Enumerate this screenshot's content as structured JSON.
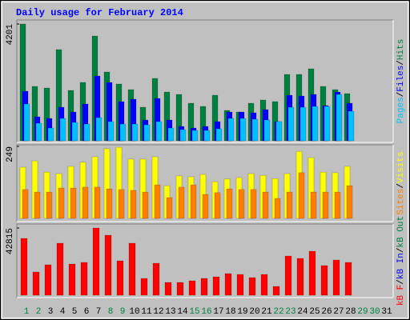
{
  "chart_data": {
    "type": "bar",
    "title": "Daily usage for February 2014",
    "categories": [
      "1",
      "2",
      "3",
      "4",
      "5",
      "6",
      "7",
      "8",
      "9",
      "10",
      "11",
      "12",
      "13",
      "14",
      "15",
      "16",
      "17",
      "18",
      "19",
      "20",
      "21",
      "22",
      "23",
      "24",
      "25",
      "26",
      "27",
      "28",
      "29",
      "30",
      "31"
    ],
    "category_colors": [
      "#008040",
      "#008040",
      "#000000",
      "#000000",
      "#000000",
      "#000000",
      "#000000",
      "#008040",
      "#008040",
      "#000000",
      "#000000",
      "#000000",
      "#000000",
      "#000000",
      "#008040",
      "#008040",
      "#000000",
      "#000000",
      "#000000",
      "#000000",
      "#000000",
      "#008040",
      "#008040",
      "#000000",
      "#000000",
      "#000000",
      "#000000",
      "#000000",
      "#008040",
      "#008040",
      "#000000"
    ],
    "legend_separator": "/",
    "panels": [
      {
        "ylim": [
          0,
          4201
        ],
        "yticks": [
          4201
        ],
        "series": [
          {
            "name": "Hits",
            "color": "#008040",
            "values": [
              4201,
              1957,
              1899,
              3280,
              1813,
              2100,
              3769,
              2474,
              2043,
              1841,
              1208,
              2244,
              1755,
              1669,
              1352,
              1237,
              1640,
              1093,
              1036,
              1352,
              1467,
              1410,
              2388,
              2388,
              2590,
              1957,
              1841,
              1697,
              null,
              null,
              null
            ]
          },
          {
            "name": "Files",
            "color": "#0000ff",
            "values": [
              1784,
              863,
              806,
              1208,
              1036,
              1324,
              2331,
              2100,
              1410,
              1496,
              748,
              1525,
              748,
              518,
              460,
              518,
              691,
              1036,
              1036,
              1007,
              1122,
              691,
              1640,
              1611,
              1669,
              1266,
              1755,
              1352,
              null,
              null,
              null
            ]
          },
          {
            "name": "Pages",
            "color": "#00c0ff",
            "values": [
              1324,
              633,
              460,
              806,
              662,
              604,
              834,
              691,
              604,
              604,
              575,
              691,
              460,
              403,
              374,
              374,
              432,
              806,
              806,
              777,
              748,
              691,
              1208,
              1208,
              1237,
              1237,
              1669,
              1065,
              null,
              null,
              null
            ]
          }
        ]
      },
      {
        "ylim": [
          0,
          249
        ],
        "yticks": [
          249
        ],
        "series": [
          {
            "name": "Visits",
            "color": "#ffff00",
            "values": [
              177,
              199,
              160,
              155,
              180,
              194,
              213,
              241,
              246,
              205,
              205,
              213,
              113,
              147,
              144,
              152,
              127,
              136,
              141,
              155,
              149,
              138,
              155,
              232,
              210,
              160,
              158,
              180,
              null,
              null,
              null
            ]
          },
          {
            "name": "Sites",
            "color": "#ff8000",
            "values": [
              100,
              91,
              91,
              105,
              105,
              108,
              108,
              102,
              100,
              97,
              91,
              116,
              72,
              108,
              116,
              83,
              89,
              102,
              100,
              100,
              91,
              69,
              91,
              158,
              91,
              91,
              91,
              113,
              null,
              null,
              null
            ]
          }
        ]
      },
      {
        "ylim": [
          0,
          42815
        ],
        "yticks": [
          42815
        ],
        "series": [
          {
            "name": "kB Out",
            "color": "#008040",
            "values": [
              null,
              null,
              null,
              null,
              null,
              null,
              null,
              null,
              null,
              null,
              null,
              null,
              null,
              null,
              null,
              null,
              null,
              null,
              null,
              null,
              null,
              null,
              null,
              null,
              null,
              null,
              null,
              null,
              null,
              null,
              null
            ]
          },
          {
            "name": "kB In",
            "color": "#0000ff",
            "values": [
              null,
              null,
              null,
              null,
              null,
              null,
              null,
              null,
              null,
              null,
              null,
              null,
              null,
              null,
              null,
              null,
              null,
              null,
              null,
              null,
              null,
              null,
              null,
              null,
              null,
              null,
              null,
              null,
              null,
              null,
              null
            ]
          },
          {
            "name": "kB F",
            "color": "#ff0000",
            "values": [
              36189,
              14781,
              19369,
              33130,
              19878,
              20897,
              42815,
              38228,
              21917,
              33130,
              10704,
              20388,
              8155,
              8155,
              9175,
              10704,
              11723,
              13762,
              13252,
              11213,
              13252,
              5607,
              24975,
              23446,
              28033,
              18859,
              22427,
              20897,
              null,
              null,
              null
            ]
          }
        ]
      }
    ]
  }
}
